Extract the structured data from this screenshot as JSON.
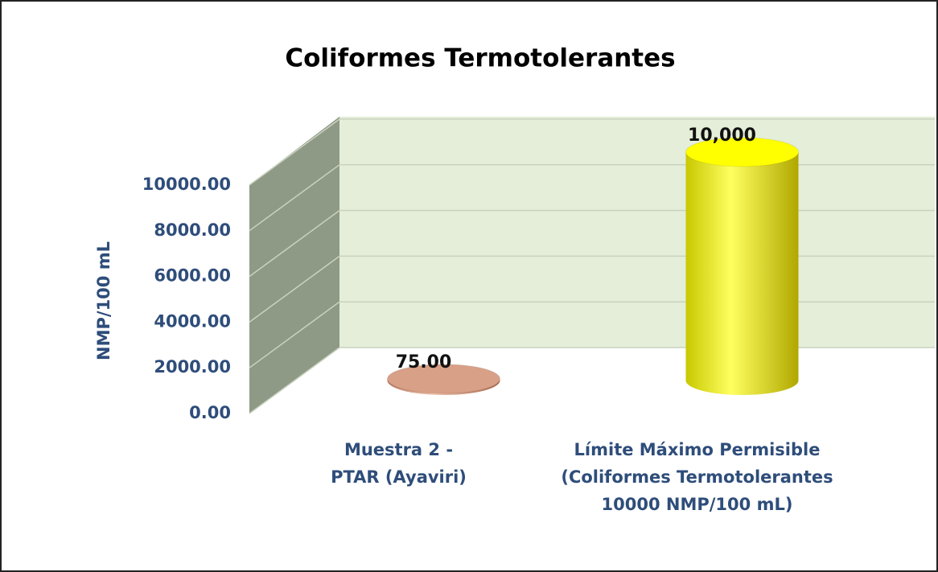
{
  "chart_data": {
    "type": "bar3d",
    "title": "Coliformes Termotolerantes",
    "y_label": "NMP/100 mL",
    "categories": [
      "Muestra 2 - PTAR (Ayaviri)",
      "Límite Máximo Permisible (Coliformes Termotolerantes  10000 NMP/100 mL)"
    ],
    "values": [
      75,
      10000
    ],
    "value_labels": [
      "75.00",
      "10,000"
    ],
    "colors": [
      "#d9a088",
      "#ffff00"
    ],
    "ylim": [
      0,
      10000
    ],
    "yticks": [
      {
        "value": 0,
        "label": "0.00"
      },
      {
        "value": 2000,
        "label": "2000.00"
      },
      {
        "value": 4000,
        "label": "4000.00"
      },
      {
        "value": 6000,
        "label": "6000.00"
      },
      {
        "value": 8000,
        "label": "8000.00"
      },
      {
        "value": 10000,
        "label": "10000.00"
      }
    ],
    "grid": true
  }
}
